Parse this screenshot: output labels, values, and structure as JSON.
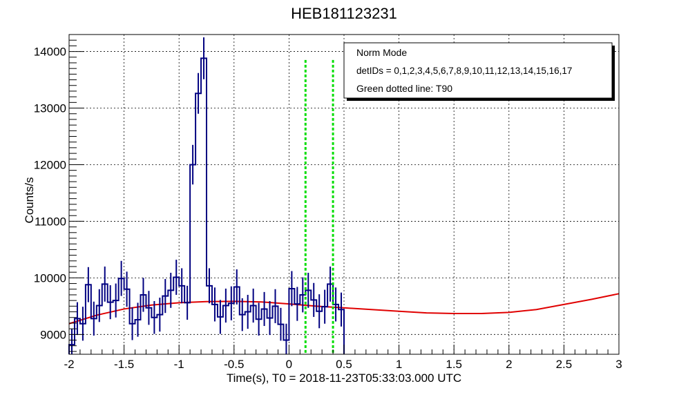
{
  "chart_data": {
    "type": "line",
    "title": "HEB181123231",
    "xlabel": "Time(s), T0 = 2018-11-23T05:33:03.000 UTC",
    "ylabel": "Counts/s",
    "xlim": [
      -2,
      3
    ],
    "ylim": [
      8650,
      14300
    ],
    "xticks": [
      -2,
      -1.5,
      -1,
      -0.5,
      0,
      0.5,
      1,
      1.5,
      2,
      2.5,
      3
    ],
    "xtick_labels": [
      "-2",
      "-1.5",
      "-1",
      "-0.5",
      "0",
      "0.5",
      "1",
      "1.5",
      "2",
      "2.5",
      "3"
    ],
    "yticks": [
      9000,
      10000,
      11000,
      12000,
      13000,
      14000
    ],
    "ytick_labels": [
      "9000",
      "10000",
      "11000",
      "12000",
      "13000",
      "14000"
    ],
    "grid": true,
    "legend_position": "top-right",
    "legend": [
      "Norm Mode",
      "detIDs = 0,1,2,3,4,5,6,7,8,9,10,11,12,13,14,15,16,17",
      "Green dotted line: T90"
    ],
    "colors": {
      "histogram": "#000080",
      "background_fit": "#e00000",
      "t90": "#00dd00"
    },
    "bin_width": 0.05,
    "bin_start": -2,
    "series": [
      {
        "style": "step-histogram",
        "values": [
          8820,
          9280,
          9190,
          9880,
          9280,
          9510,
          9890,
          9570,
          9600,
          9990,
          9800,
          9190,
          9260,
          9700,
          9470,
          9300,
          9350,
          9680,
          9780,
          10010,
          9860,
          9560,
          12000,
          13260,
          13880,
          9860,
          9530,
          9310,
          9510,
          9550,
          9840,
          9350,
          9400,
          9510,
          9270,
          9450,
          9290,
          9500,
          9180,
          8900,
          9810,
          9540,
          9700,
          9780,
          9610,
          9410,
          9490,
          9890,
          9530,
          9440
        ],
        "errors": [
          280,
          290,
          300,
          310,
          300,
          290,
          310,
          300,
          300,
          310,
          310,
          290,
          300,
          300,
          300,
          290,
          300,
          300,
          310,
          310,
          310,
          300,
          350,
          360,
          370,
          310,
          300,
          300,
          300,
          300,
          310,
          290,
          300,
          300,
          290,
          300,
          300,
          300,
          290,
          290,
          310,
          300,
          310,
          310,
          300,
          300,
          300,
          310,
          300,
          300
        ]
      },
      {
        "style": "background-fit",
        "x": [
          -2,
          -1.75,
          -1.5,
          -1.25,
          -1,
          -0.75,
          -0.5,
          -0.25,
          0,
          0.25,
          0.5,
          0.75,
          1,
          1.25,
          1.5,
          1.75,
          2,
          2.25,
          2.5,
          2.75,
          3
        ],
        "y": [
          9190,
          9340,
          9450,
          9520,
          9560,
          9580,
          9585,
          9575,
          9540,
          9500,
          9470,
          9440,
          9410,
          9380,
          9370,
          9370,
          9390,
          9440,
          9530,
          9620,
          9720
        ]
      }
    ],
    "t90_lines": [
      0.15,
      0.4
    ],
    "t90_top": 13850
  }
}
